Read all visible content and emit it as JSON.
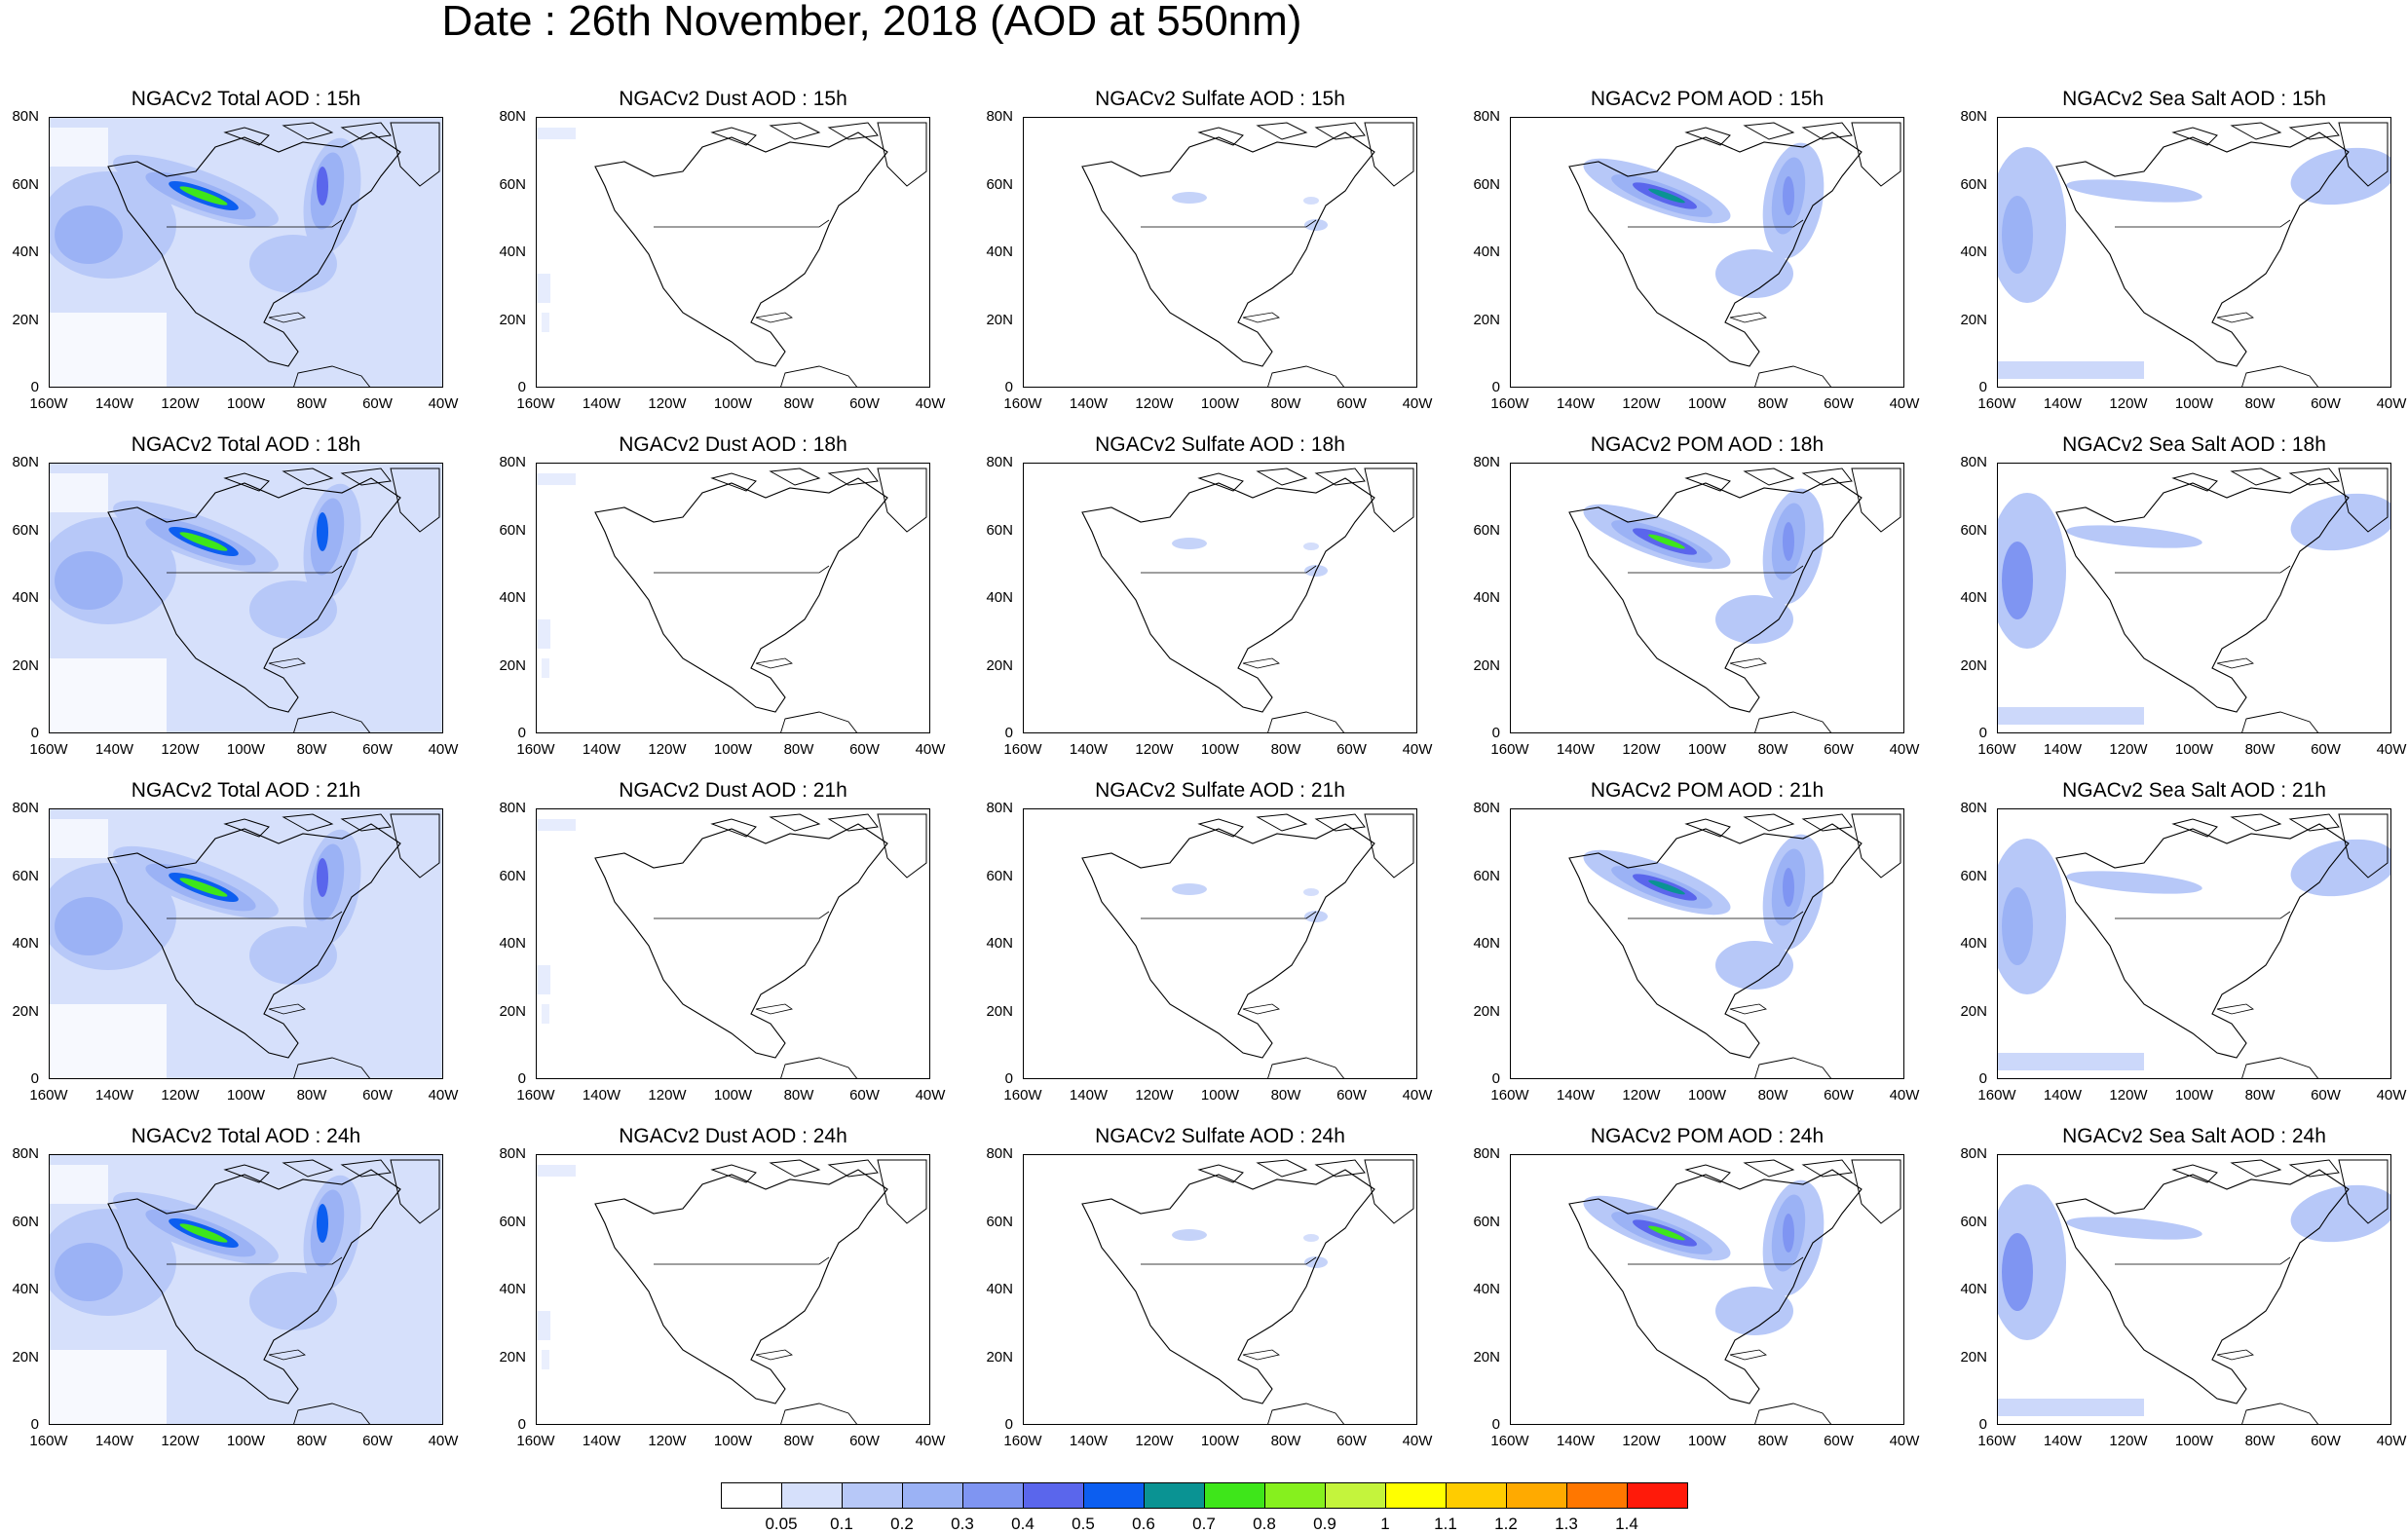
{
  "title": "Date : 26th November, 2018 (AOD at 550nm)",
  "lat_labels": [
    "80N",
    "60N",
    "40N",
    "20N",
    "0"
  ],
  "lon_labels": [
    "160W",
    "140W",
    "120W",
    "100W",
    "80W",
    "60W",
    "40W"
  ],
  "panel_titles": [
    [
      "NGACv2 Total AOD : 15h",
      "NGACv2 Dust AOD : 15h",
      "NGACv2 Sulfate AOD : 15h",
      "NGACv2 POM AOD : 15h",
      "NGACv2 Sea Salt AOD : 15h"
    ],
    [
      "NGACv2 Total AOD : 18h",
      "NGACv2 Dust AOD : 18h",
      "NGACv2 Sulfate AOD : 18h",
      "NGACv2 POM AOD : 18h",
      "NGACv2 Sea Salt AOD : 18h"
    ],
    [
      "NGACv2 Total AOD : 21h",
      "NGACv2 Dust AOD : 21h",
      "NGACv2 Sulfate AOD : 21h",
      "NGACv2 POM AOD : 21h",
      "NGACv2 Sea Salt AOD : 21h"
    ],
    [
      "NGACv2 Total AOD : 24h",
      "NGACv2 Dust AOD : 24h",
      "NGACv2 Sulfate AOD : 24h",
      "NGACv2 POM AOD : 24h",
      "NGACv2 Sea Salt  AOD : 24h"
    ]
  ],
  "colorbar": {
    "labels": [
      "0.05",
      "0.1",
      "0.2",
      "0.3",
      "0.4",
      "0.5",
      "0.6",
      "0.7",
      "0.8",
      "0.9",
      "1",
      "1.1",
      "1.2",
      "1.3",
      "1.4"
    ],
    "colors": [
      "#ffffff",
      "#d6e0fb",
      "#b7c8f8",
      "#9bb2f5",
      "#7f95f2",
      "#5a66ec",
      "#0c5ef0",
      "#0a9393",
      "#3ee61a",
      "#86f01e",
      "#c4f43c",
      "#ffff00",
      "#ffcc00",
      "#ffaa00",
      "#ff7700",
      "#ff1a0a"
    ]
  }
}
